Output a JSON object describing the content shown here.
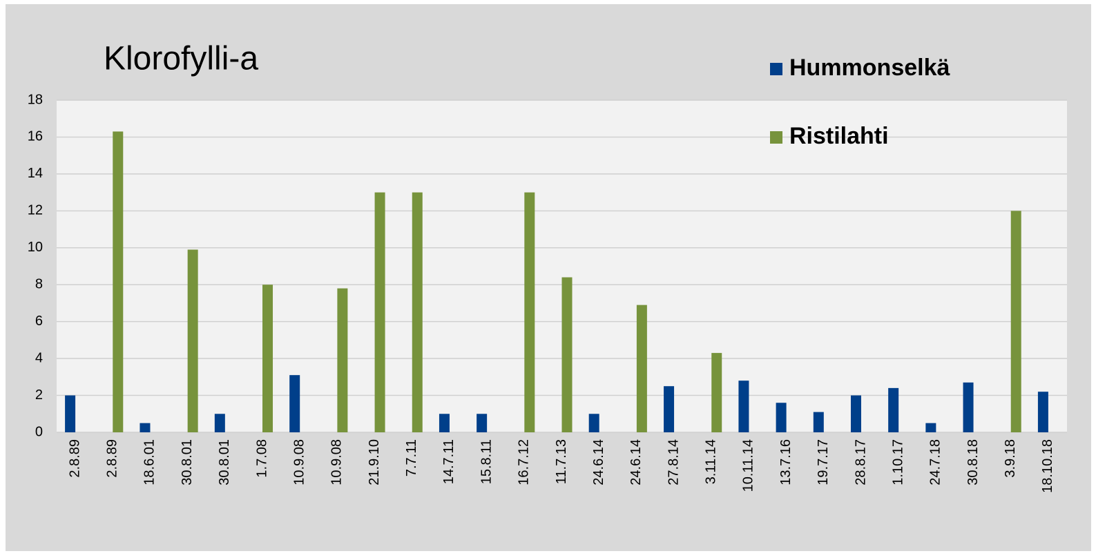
{
  "chart_data": {
    "type": "bar",
    "title": "Klorofylli-a",
    "categories": [
      "2.8.89",
      "2.8.89",
      "18.6.01",
      "30.8.01",
      "30.8.01",
      "1.7.08",
      "10.9.08",
      "10.9.08",
      "21.9.10",
      "7.7.11",
      "14.7.11",
      "15.8.11",
      "16.7.12",
      "11.7.13",
      "24.6.14",
      "24.6.14",
      "27.8.14",
      "3.11.14",
      "10.11.14",
      "13.7.16",
      "19.7.17",
      "28.8.17",
      "1.10.17",
      "24.7.18",
      "30.8.18",
      "3.9.18",
      "18.10.18"
    ],
    "series": [
      {
        "name": "Hummonselkä",
        "color": "#003f8a",
        "values": [
          2,
          null,
          0.5,
          null,
          1,
          null,
          3.1,
          null,
          null,
          null,
          1,
          1,
          null,
          null,
          1,
          null,
          2.5,
          null,
          2.8,
          1.6,
          1.1,
          2,
          2.4,
          0.5,
          2.7,
          null,
          2.2
        ]
      },
      {
        "name": "Ristilahti",
        "color": "#77933c",
        "values": [
          null,
          16.3,
          null,
          9.9,
          null,
          8,
          null,
          7.8,
          13,
          13,
          null,
          null,
          13,
          8.4,
          null,
          6.9,
          null,
          4.3,
          null,
          null,
          null,
          null,
          null,
          null,
          null,
          12,
          null
        ]
      }
    ],
    "ylim": [
      0,
      18
    ],
    "yticks": [
      0,
      2,
      4,
      6,
      8,
      10,
      12,
      14,
      16,
      18
    ],
    "grid": true,
    "legend": "upper right"
  }
}
